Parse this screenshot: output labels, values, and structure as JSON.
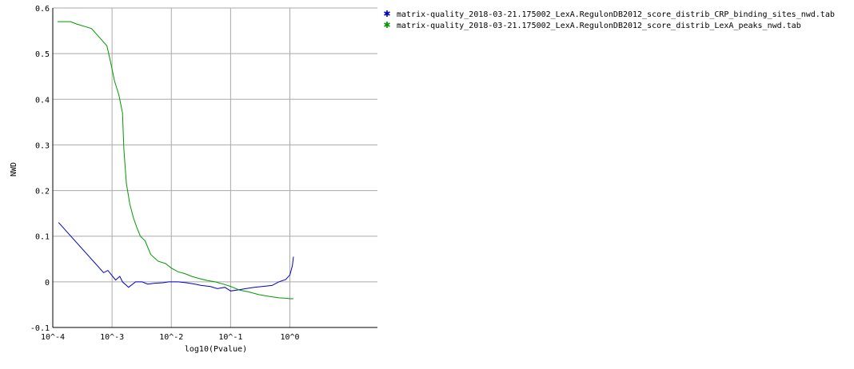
{
  "chart_data": {
    "type": "line",
    "xlabel": "log10(Pvalue)",
    "ylabel": "NWD",
    "xscale": "log",
    "xlim": [
      0.0001,
      30
    ],
    "ylim": [
      -0.1,
      0.6
    ],
    "grid": true,
    "legend_position": "top-right",
    "x_ticks": [
      0.0001,
      0.001,
      0.01,
      0.1,
      1
    ],
    "x_tick_labels": [
      "10^-4",
      "10^-3",
      "10^-2",
      "10^-1",
      "10^0"
    ],
    "y_ticks": [
      -0.1,
      0,
      0.1,
      0.2,
      0.3,
      0.4,
      0.5,
      0.6
    ],
    "y_tick_labels": [
      "-0.1",
      "0",
      "0.1",
      "0.2",
      "0.3",
      "0.4",
      "0.5",
      "0.6"
    ],
    "series": [
      {
        "name": "matrix-quality_2018-03-21.175002_LexA.RegulonDB2012_score_distrib_CRP_binding_sites_nwd.tab",
        "color": "#0000cc",
        "points": [
          [
            0.000125,
            0.13
          ],
          [
            0.00072,
            0.02
          ],
          [
            0.00085,
            0.025
          ],
          [
            0.00115,
            0.004
          ],
          [
            0.00135,
            0.012
          ],
          [
            0.0015,
            0.0
          ],
          [
            0.0019,
            -0.012
          ],
          [
            0.0025,
            0.0
          ],
          [
            0.0032,
            0.0
          ],
          [
            0.004,
            -0.005
          ],
          [
            0.0052,
            -0.003
          ],
          [
            0.0072,
            -0.002
          ],
          [
            0.009,
            0.0
          ],
          [
            0.013,
            0.0
          ],
          [
            0.018,
            -0.002
          ],
          [
            0.025,
            -0.005
          ],
          [
            0.032,
            -0.008
          ],
          [
            0.045,
            -0.01
          ],
          [
            0.06,
            -0.015
          ],
          [
            0.08,
            -0.012
          ],
          [
            0.1,
            -0.02
          ],
          [
            0.13,
            -0.018
          ],
          [
            0.18,
            -0.015
          ],
          [
            0.25,
            -0.012
          ],
          [
            0.35,
            -0.01
          ],
          [
            0.5,
            -0.008
          ],
          [
            0.65,
            0.0
          ],
          [
            0.85,
            0.005
          ],
          [
            1.0,
            0.015
          ],
          [
            1.1,
            0.035
          ],
          [
            1.15,
            0.055
          ]
        ]
      },
      {
        "name": "matrix-quality_2018-03-21.175002_LexA.RegulonDB2012_score_distrib_LexA_peaks_nwd.tab",
        "color": "#009900",
        "points": [
          [
            0.00012,
            0.57
          ],
          [
            0.0002,
            0.57
          ],
          [
            0.00025,
            0.565
          ],
          [
            0.00045,
            0.555
          ],
          [
            0.00082,
            0.517
          ],
          [
            0.00095,
            0.48
          ],
          [
            0.0011,
            0.44
          ],
          [
            0.0013,
            0.41
          ],
          [
            0.0015,
            0.37
          ],
          [
            0.00158,
            0.29
          ],
          [
            0.00175,
            0.215
          ],
          [
            0.002,
            0.17
          ],
          [
            0.0023,
            0.14
          ],
          [
            0.0026,
            0.12
          ],
          [
            0.003,
            0.1
          ],
          [
            0.0036,
            0.09
          ],
          [
            0.0045,
            0.06
          ],
          [
            0.006,
            0.045
          ],
          [
            0.008,
            0.04
          ],
          [
            0.01,
            0.03
          ],
          [
            0.013,
            0.022
          ],
          [
            0.017,
            0.018
          ],
          [
            0.022,
            0.012
          ],
          [
            0.03,
            0.007
          ],
          [
            0.04,
            0.003
          ],
          [
            0.055,
            0.0
          ],
          [
            0.075,
            -0.005
          ],
          [
            0.1,
            -0.01
          ],
          [
            0.14,
            -0.018
          ],
          [
            0.2,
            -0.022
          ],
          [
            0.3,
            -0.028
          ],
          [
            0.45,
            -0.032
          ],
          [
            0.65,
            -0.035
          ],
          [
            0.85,
            -0.036
          ],
          [
            1.0,
            -0.037
          ],
          [
            1.15,
            -0.037
          ]
        ]
      }
    ]
  }
}
